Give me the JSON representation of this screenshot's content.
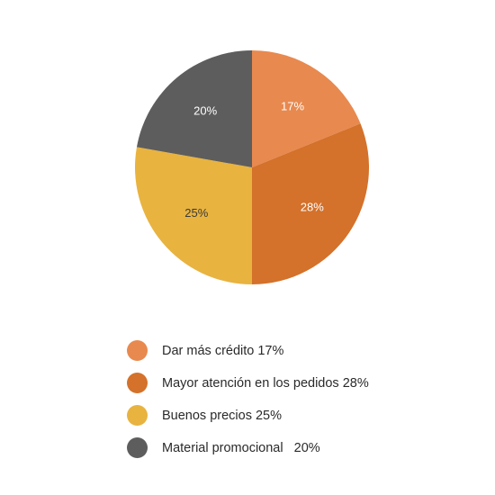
{
  "chart_data": {
    "type": "pie",
    "categories": [
      "Dar más crédito",
      "Mayor atención en los pedidos",
      "Buenos precios",
      "Material promocional"
    ],
    "values": [
      17,
      28,
      25,
      20
    ],
    "slice_labels": [
      "17%",
      "28%",
      "25%",
      "20%"
    ],
    "colors": [
      "#E8894F",
      "#D4712A",
      "#E8B33F",
      "#5D5D5D"
    ],
    "label_colors": [
      "#ffffff",
      "#ffffff",
      "#3a3a3a",
      "#ffffff"
    ],
    "title": "",
    "legend_position": "bottom"
  },
  "legend": {
    "items": [
      {
        "label": "Dar más crédito 17%",
        "color": "#E8894F"
      },
      {
        "label": "Mayor atención en los pedidos 28%",
        "color": "#D4712A"
      },
      {
        "label": "Buenos precios 25%",
        "color": "#E8B33F"
      },
      {
        "label": "Material promocional   20%",
        "color": "#5D5D5D"
      }
    ]
  }
}
